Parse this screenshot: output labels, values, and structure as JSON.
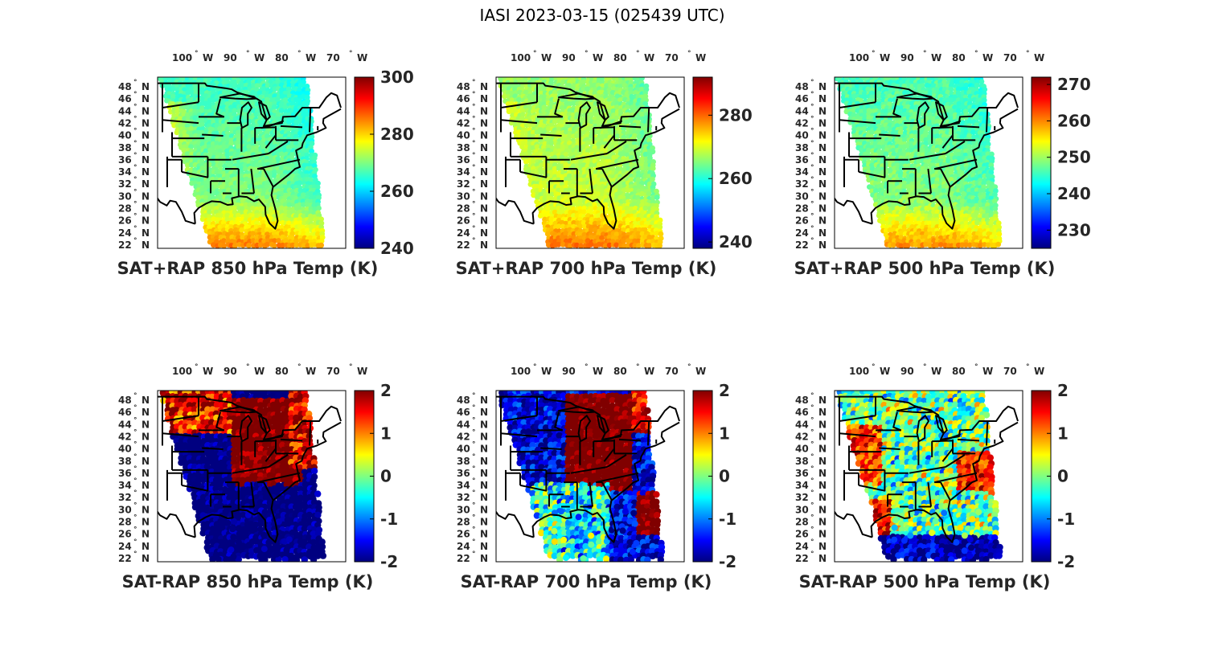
{
  "figure": {
    "title": "IASI 2023-03-15 (025439 UTC)"
  },
  "lon_labels": [
    {
      "value": 100,
      "deg": "°",
      "hem": "W"
    },
    {
      "value": 90,
      "deg": "°",
      "hem": "W"
    },
    {
      "value": 80,
      "deg": "°",
      "hem": "W"
    },
    {
      "value": 70,
      "deg": "°",
      "hem": "W"
    }
  ],
  "lat_labels": [
    {
      "value": 48,
      "deg": "°",
      "hem": "N"
    },
    {
      "value": 46,
      "deg": "°",
      "hem": "N"
    },
    {
      "value": 44,
      "deg": "°",
      "hem": "N"
    },
    {
      "value": 42,
      "deg": "°",
      "hem": "N"
    },
    {
      "value": 40,
      "deg": "°",
      "hem": "N"
    },
    {
      "value": 38,
      "deg": "°",
      "hem": "N"
    },
    {
      "value": 36,
      "deg": "°",
      "hem": "N"
    },
    {
      "value": 34,
      "deg": "°",
      "hem": "N"
    },
    {
      "value": 32,
      "deg": "°",
      "hem": "N"
    },
    {
      "value": 30,
      "deg": "°",
      "hem": "N"
    },
    {
      "value": 28,
      "deg": "°",
      "hem": "N"
    },
    {
      "value": 26,
      "deg": "°",
      "hem": "N"
    },
    {
      "value": 24,
      "deg": "°",
      "hem": "N"
    },
    {
      "value": 22,
      "deg": "°",
      "hem": "N"
    }
  ],
  "map_extent": {
    "lon_min": -105,
    "lon_max": -66,
    "lat_min": 22,
    "lat_max": 50
  },
  "swath": {
    "colors": "jet colormap"
  },
  "panels": [
    {
      "id": "p850",
      "title": "SAT+RAP 850 hPa Temp (K)",
      "kind": "temp",
      "cbar": {
        "min": 240,
        "max": 300,
        "ticks": [
          "300",
          "280",
          "260",
          "240"
        ],
        "tick_values": [
          300,
          280,
          260,
          240
        ]
      },
      "field": {
        "base": 272,
        "north_gradient": -6,
        "south_warm": 14,
        "west_warm": 10,
        "east_cool": -6,
        "noise": 2
      }
    },
    {
      "id": "p700",
      "title": "SAT+RAP 700 hPa Temp (K)",
      "kind": "temp",
      "cbar": {
        "min": 238,
        "max": 292,
        "ticks": [
          "280",
          "260",
          "240"
        ],
        "tick_values": [
          280,
          260,
          240
        ]
      },
      "field": {
        "base": 270,
        "north_gradient": -4,
        "south_warm": 10,
        "west_warm": 4,
        "east_cool": -6,
        "noise": 2
      }
    },
    {
      "id": "p500",
      "title": "SAT+RAP 500 hPa Temp (K)",
      "kind": "temp",
      "cbar": {
        "min": 225,
        "max": 272,
        "ticks": [
          "270",
          "260",
          "250",
          "240",
          "230"
        ],
        "tick_values": [
          270,
          260,
          250,
          240,
          230
        ]
      },
      "field": {
        "base": 250,
        "north_gradient": -4,
        "south_warm": 10,
        "west_warm": 0,
        "east_cool": -4,
        "noise": 2
      }
    },
    {
      "id": "d850",
      "title": "SAT-RAP 850 hPa Temp (K)",
      "kind": "diff",
      "cbar": {
        "min": -2,
        "max": 2,
        "ticks": [
          "2",
          "1",
          "0",
          "-1",
          "-2"
        ],
        "tick_values": [
          2,
          1,
          0,
          -1,
          -2
        ]
      },
      "field": {
        "pattern": "d850"
      }
    },
    {
      "id": "d700",
      "title": "SAT-RAP 700 hPa Temp (K)",
      "kind": "diff",
      "cbar": {
        "min": -2,
        "max": 2,
        "ticks": [
          "2",
          "1",
          "0",
          "-1",
          "-2"
        ],
        "tick_values": [
          2,
          1,
          0,
          -1,
          -2
        ]
      },
      "field": {
        "pattern": "d700"
      }
    },
    {
      "id": "d500",
      "title": "SAT-RAP 500 hPa Temp (K)",
      "kind": "diff",
      "cbar": {
        "min": -2,
        "max": 2,
        "ticks": [
          "2",
          "1",
          "0",
          "-1",
          "-2"
        ],
        "tick_values": [
          2,
          1,
          0,
          -1,
          -2
        ]
      },
      "field": {
        "pattern": "d500"
      }
    }
  ]
}
